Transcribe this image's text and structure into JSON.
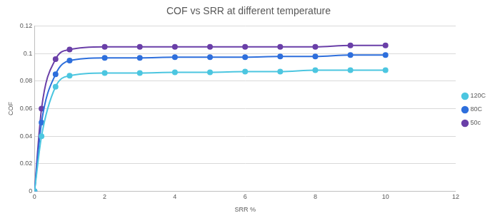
{
  "chart_data": {
    "type": "line",
    "title": "COF vs SRR at different temperature",
    "x_label": "SRR %",
    "y_label": "COF",
    "x": [
      0,
      0.2,
      0.6,
      1,
      2,
      3,
      4,
      5,
      6,
      7,
      8,
      9,
      10
    ],
    "series": [
      {
        "name": "120C",
        "color": "#4cc6e0",
        "marker": "circle",
        "line_style": "solid",
        "values": [
          0,
          0.04,
          0.076,
          0.084,
          0.086,
          0.086,
          0.0865,
          0.0865,
          0.087,
          0.087,
          0.088,
          0.088,
          0.088
        ]
      },
      {
        "name": "80C",
        "color": "#2e6fdc",
        "marker": "circle",
        "line_style": "solid",
        "values": [
          0,
          0.05,
          0.085,
          0.095,
          0.097,
          0.097,
          0.0975,
          0.0975,
          0.0975,
          0.098,
          0.098,
          0.099,
          0.099
        ]
      },
      {
        "name": "50c",
        "color": "#6a3fa8",
        "marker": "circle",
        "line_style": "solid",
        "values": [
          0,
          0.06,
          0.096,
          0.103,
          0.105,
          0.105,
          0.105,
          0.105,
          0.105,
          0.105,
          0.105,
          0.106,
          0.106
        ]
      }
    ],
    "xlim": [
      0,
      12
    ],
    "xticks": [
      0,
      2,
      4,
      6,
      8,
      10,
      12
    ],
    "ylim": [
      0,
      0.12
    ],
    "yticks": [
      0,
      0.02,
      0.04,
      0.06,
      0.08,
      0.1,
      0.12
    ],
    "grid": true,
    "legend": "right"
  }
}
